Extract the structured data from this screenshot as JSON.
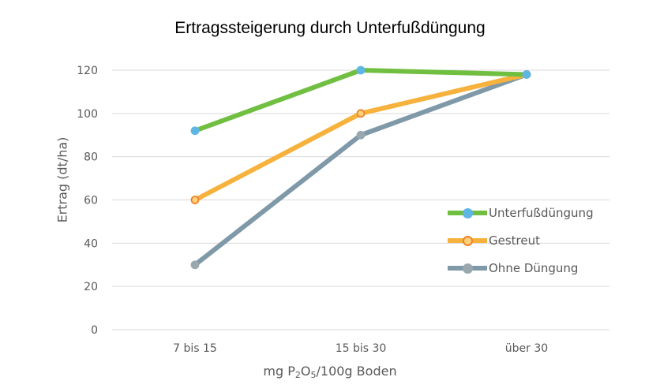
{
  "chart_data": {
    "type": "line",
    "title": "Ertragssteigerung durch Unterfußdüngung",
    "xlabel_parts": [
      "mg P",
      "2",
      "O",
      "5",
      "/100g Boden"
    ],
    "ylabel": "Ertrag (dt/ha)",
    "categories": [
      "7 bis 15",
      "15 bis 30",
      "über 30"
    ],
    "ylim": [
      0,
      120
    ],
    "yticks": [
      0,
      20,
      40,
      60,
      80,
      100,
      120
    ],
    "grid": true,
    "legend_position": "right",
    "series": [
      {
        "name": "Unterfußdüngung",
        "values": [
          92,
          120,
          118
        ],
        "color": "#70bf41",
        "marker_fill": "#5eb6e4",
        "marker_edge": "#5eb6e4"
      },
      {
        "name": "Gestreut",
        "values": [
          60,
          100,
          118
        ],
        "color": "#f6b23c",
        "marker_fill": "#ffd27a",
        "marker_edge": "#f0822a"
      },
      {
        "name": "Ohne Düngung",
        "values": [
          30,
          90,
          118
        ],
        "color": "#7f99a8",
        "marker_fill": "#9aa7ae",
        "marker_edge": "#9aa7ae"
      }
    ]
  }
}
